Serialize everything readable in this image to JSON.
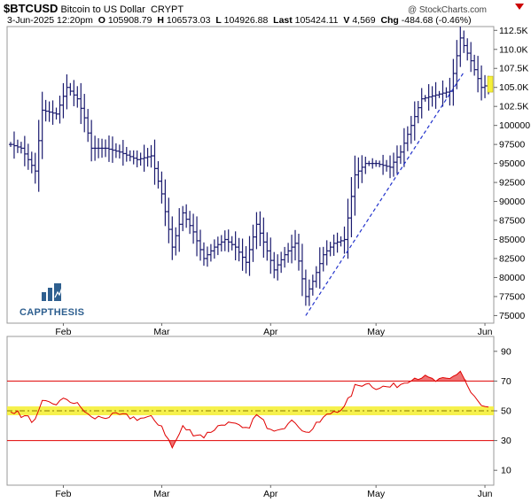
{
  "header": {
    "symbol": "$BTCUSD",
    "name": "Bitcoin to US Dollar",
    "exchange": "CRYPT",
    "date": "3-Jun-2025 12:20pm",
    "open_label": "O",
    "open": "105908.79",
    "high_label": "H",
    "high": "106573.03",
    "low_label": "L",
    "low": "104926.88",
    "last_label": "Last",
    "last": "105424.11",
    "vol_label": "V",
    "vol": "4,569",
    "chg_label": "Chg",
    "chg": "-484.68 (-0.46%)",
    "watermark": "@ StockCharts.com"
  },
  "logo": {
    "text": "CAPPTHESIS"
  },
  "colors": {
    "bars": "#1a1a6e",
    "rsi_line": "#e00000",
    "highlight": "#f5f03a",
    "trendline": "#2233cc"
  },
  "chart_data": [
    {
      "type": "bar",
      "ylim": [
        74000,
        113000
      ],
      "y_ticks": [
        "75000",
        "77500",
        "80000",
        "82500",
        "85000",
        "87500",
        "90000",
        "92500",
        "95000",
        "97500",
        "100000",
        "102.5K",
        "105.0K",
        "107.5K",
        "110.0K",
        "112.5K"
      ],
      "y_tick_values": [
        75000,
        77500,
        80000,
        82500,
        85000,
        87500,
        90000,
        92500,
        95000,
        97500,
        100000,
        102500,
        105000,
        107500,
        110000,
        112500
      ],
      "x_labels": [
        "Feb",
        "Mar",
        "Apr",
        "May",
        "Jun"
      ],
      "x_label_index": [
        15,
        43,
        74,
        104,
        135
      ],
      "n_days": 137,
      "key_points": [
        [
          0,
          97500
        ],
        [
          3,
          97000
        ],
        [
          7,
          94000
        ],
        [
          9,
          102000
        ],
        [
          13,
          101500
        ],
        [
          16,
          105000
        ],
        [
          19,
          103500
        ],
        [
          21,
          101000
        ],
        [
          23,
          97000
        ],
        [
          27,
          97000
        ],
        [
          31,
          96500
        ],
        [
          36,
          95500
        ],
        [
          40,
          96000
        ],
        [
          43,
          91000
        ],
        [
          46,
          84000
        ],
        [
          49,
          88500
        ],
        [
          52,
          86000
        ],
        [
          55,
          82500
        ],
        [
          58,
          84000
        ],
        [
          61,
          85000
        ],
        [
          64,
          84000
        ],
        [
          67,
          82000
        ],
        [
          70,
          87000
        ],
        [
          73,
          83500
        ],
        [
          75,
          81000
        ],
        [
          78,
          83000
        ],
        [
          81,
          84500
        ],
        [
          84,
          77500
        ],
        [
          86,
          79500
        ],
        [
          89,
          83000
        ],
        [
          92,
          84500
        ],
        [
          95,
          85000
        ],
        [
          98,
          93500
        ],
        [
          101,
          95000
        ],
        [
          104,
          95000
        ],
        [
          108,
          94500
        ],
        [
          111,
          96500
        ],
        [
          114,
          100000
        ],
        [
          117,
          103500
        ],
        [
          121,
          104000
        ],
        [
          125,
          104500
        ],
        [
          128,
          111500
        ],
        [
          131,
          108500
        ],
        [
          134,
          105000
        ],
        [
          136,
          105400
        ]
      ],
      "trendline": [
        [
          84,
          75000
        ],
        [
          129,
          107000
        ]
      ],
      "last_price_tag": 105424
    },
    {
      "type": "line",
      "name": "RSI",
      "ylim": [
        0,
        100
      ],
      "y_ticks": [
        "10",
        "30",
        "50",
        "70",
        "90"
      ],
      "y_tick_values": [
        10,
        30,
        50,
        70,
        90
      ],
      "x_labels": [
        "Feb",
        "Mar",
        "Apr",
        "May",
        "Jun"
      ],
      "levels": [
        30,
        50,
        70
      ],
      "key_points": [
        [
          0,
          51
        ],
        [
          3,
          47
        ],
        [
          7,
          43
        ],
        [
          9,
          55
        ],
        [
          13,
          55
        ],
        [
          16,
          58
        ],
        [
          19,
          54
        ],
        [
          21,
          50
        ],
        [
          23,
          45
        ],
        [
          27,
          46
        ],
        [
          31,
          47
        ],
        [
          36,
          45
        ],
        [
          40,
          45
        ],
        [
          43,
          40
        ],
        [
          46,
          25
        ],
        [
          49,
          39
        ],
        [
          52,
          35
        ],
        [
          55,
          33
        ],
        [
          58,
          38
        ],
        [
          61,
          42
        ],
        [
          64,
          40
        ],
        [
          67,
          37
        ],
        [
          70,
          47
        ],
        [
          73,
          40
        ],
        [
          75,
          38
        ],
        [
          78,
          40
        ],
        [
          81,
          43
        ],
        [
          84,
          35
        ],
        [
          86,
          38
        ],
        [
          89,
          45
        ],
        [
          92,
          50
        ],
        [
          95,
          52
        ],
        [
          98,
          66
        ],
        [
          101,
          69
        ],
        [
          104,
          66
        ],
        [
          108,
          66
        ],
        [
          111,
          68
        ],
        [
          114,
          72
        ],
        [
          117,
          73
        ],
        [
          121,
          70
        ],
        [
          125,
          71
        ],
        [
          128,
          77
        ],
        [
          131,
          62
        ],
        [
          134,
          53
        ],
        [
          136,
          51
        ]
      ]
    }
  ]
}
